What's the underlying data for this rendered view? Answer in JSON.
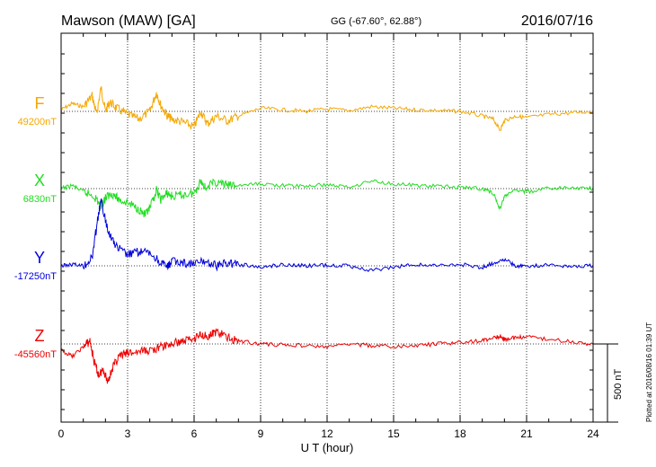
{
  "header": {
    "title": "Mawson (MAW)  [GA]",
    "coords": "GG (-67.60°,  62.88°)",
    "date": "2016/07/16"
  },
  "footer": {
    "plotted": "Plotted at 2016/08/16 01:39 UT"
  },
  "chart_data": {
    "type": "line",
    "title": "Mawson (MAW)  [GA]",
    "xlabel": "U T (hour)",
    "ylabel": "",
    "xlim": [
      0,
      24
    ],
    "x_ticks": [
      "0",
      "3",
      "6",
      "9",
      "12",
      "15",
      "18",
      "21",
      "24"
    ],
    "grid": true,
    "scale_bar": {
      "label": "500 nT",
      "value": 500
    },
    "series": [
      {
        "name": "F",
        "baseline_label": "49200nT",
        "baseline": 49200,
        "color": "#f5a800",
        "x": [
          0,
          0.5,
          1,
          1.4,
          1.6,
          1.8,
          2,
          2.2,
          2.5,
          3,
          3.5,
          4,
          4.3,
          4.5,
          4.8,
          5,
          5.5,
          6,
          6.3,
          6.6,
          7,
          7.5,
          8,
          9,
          10,
          11,
          12,
          13,
          14,
          15,
          16,
          17,
          18,
          19,
          19.5,
          19.8,
          20,
          20.5,
          21,
          22,
          23,
          24
        ],
        "y": [
          49210,
          49250,
          49230,
          49300,
          49180,
          49350,
          49200,
          49260,
          49220,
          49180,
          49150,
          49200,
          49320,
          49240,
          49170,
          49150,
          49130,
          49100,
          49200,
          49120,
          49170,
          49140,
          49170,
          49220,
          49210,
          49200,
          49215,
          49205,
          49230,
          49220,
          49210,
          49205,
          49200,
          49170,
          49150,
          49080,
          49140,
          49170,
          49160,
          49180,
          49190,
          49200
        ]
      },
      {
        "name": "X",
        "baseline_label": "6830nT",
        "baseline": 6830,
        "color": "#22dd22",
        "x": [
          0,
          0.5,
          1,
          1.5,
          1.8,
          2,
          2.3,
          2.6,
          3,
          3.5,
          3.8,
          4,
          4.3,
          4.5,
          4.8,
          5,
          5.5,
          6,
          6.3,
          6.5,
          7,
          7.5,
          8,
          9,
          10,
          11,
          12,
          13,
          14,
          15,
          16,
          17,
          18,
          19,
          19.5,
          19.8,
          20,
          20.5,
          21,
          22,
          23,
          24
        ],
        "y": [
          6830,
          6850,
          6810,
          6780,
          6720,
          6770,
          6800,
          6760,
          6740,
          6700,
          6660,
          6700,
          6820,
          6760,
          6800,
          6780,
          6790,
          6800,
          6880,
          6840,
          6870,
          6850,
          6850,
          6860,
          6850,
          6845,
          6855,
          6840,
          6880,
          6860,
          6850,
          6845,
          6840,
          6830,
          6800,
          6700,
          6780,
          6820,
          6810,
          6830,
          6835,
          6830
        ]
      },
      {
        "name": "Y",
        "baseline_label": "-17250nT",
        "baseline": -17250,
        "color": "#0000dd",
        "x": [
          0,
          0.5,
          1,
          1.4,
          1.6,
          1.8,
          2,
          2.2,
          2.5,
          3,
          3.5,
          4,
          4.5,
          4.8,
          5,
          5.5,
          6,
          6.5,
          7,
          7.5,
          8,
          9,
          10,
          11,
          12,
          13,
          14,
          15,
          16,
          17,
          18,
          19,
          19.5,
          20,
          20.5,
          21,
          22,
          23,
          24
        ],
        "y": [
          -17250,
          -17240,
          -17250,
          -17200,
          -17000,
          -16830,
          -16960,
          -17050,
          -17130,
          -17180,
          -17160,
          -17170,
          -17230,
          -17260,
          -17220,
          -17230,
          -17240,
          -17220,
          -17250,
          -17230,
          -17240,
          -17260,
          -17240,
          -17250,
          -17245,
          -17250,
          -17280,
          -17260,
          -17240,
          -17250,
          -17240,
          -17260,
          -17230,
          -17210,
          -17250,
          -17250,
          -17245,
          -17250,
          -17250
        ]
      },
      {
        "name": "Z",
        "baseline_label": "-45560nT",
        "baseline": -45560,
        "color": "#ee0000",
        "x": [
          0,
          0.5,
          1,
          1.3,
          1.5,
          1.7,
          1.9,
          2.1,
          2.3,
          2.6,
          3,
          3.5,
          4,
          4.5,
          5,
          5.5,
          6,
          6.3,
          6.7,
          7,
          7.5,
          8,
          9,
          10,
          11,
          12,
          13,
          14,
          15,
          16,
          17,
          18,
          19,
          19.5,
          19.8,
          20,
          20.5,
          21,
          22,
          23,
          24
        ],
        "y": [
          -45600,
          -45640,
          -45580,
          -45540,
          -45680,
          -45760,
          -45720,
          -45800,
          -45720,
          -45640,
          -45620,
          -45610,
          -45600,
          -45580,
          -45560,
          -45540,
          -45520,
          -45500,
          -45510,
          -45480,
          -45520,
          -45540,
          -45560,
          -45565,
          -45570,
          -45580,
          -45560,
          -45570,
          -45580,
          -45570,
          -45560,
          -45550,
          -45540,
          -45520,
          -45510,
          -45530,
          -45520,
          -45515,
          -45530,
          -45545,
          -45560
        ]
      }
    ]
  }
}
